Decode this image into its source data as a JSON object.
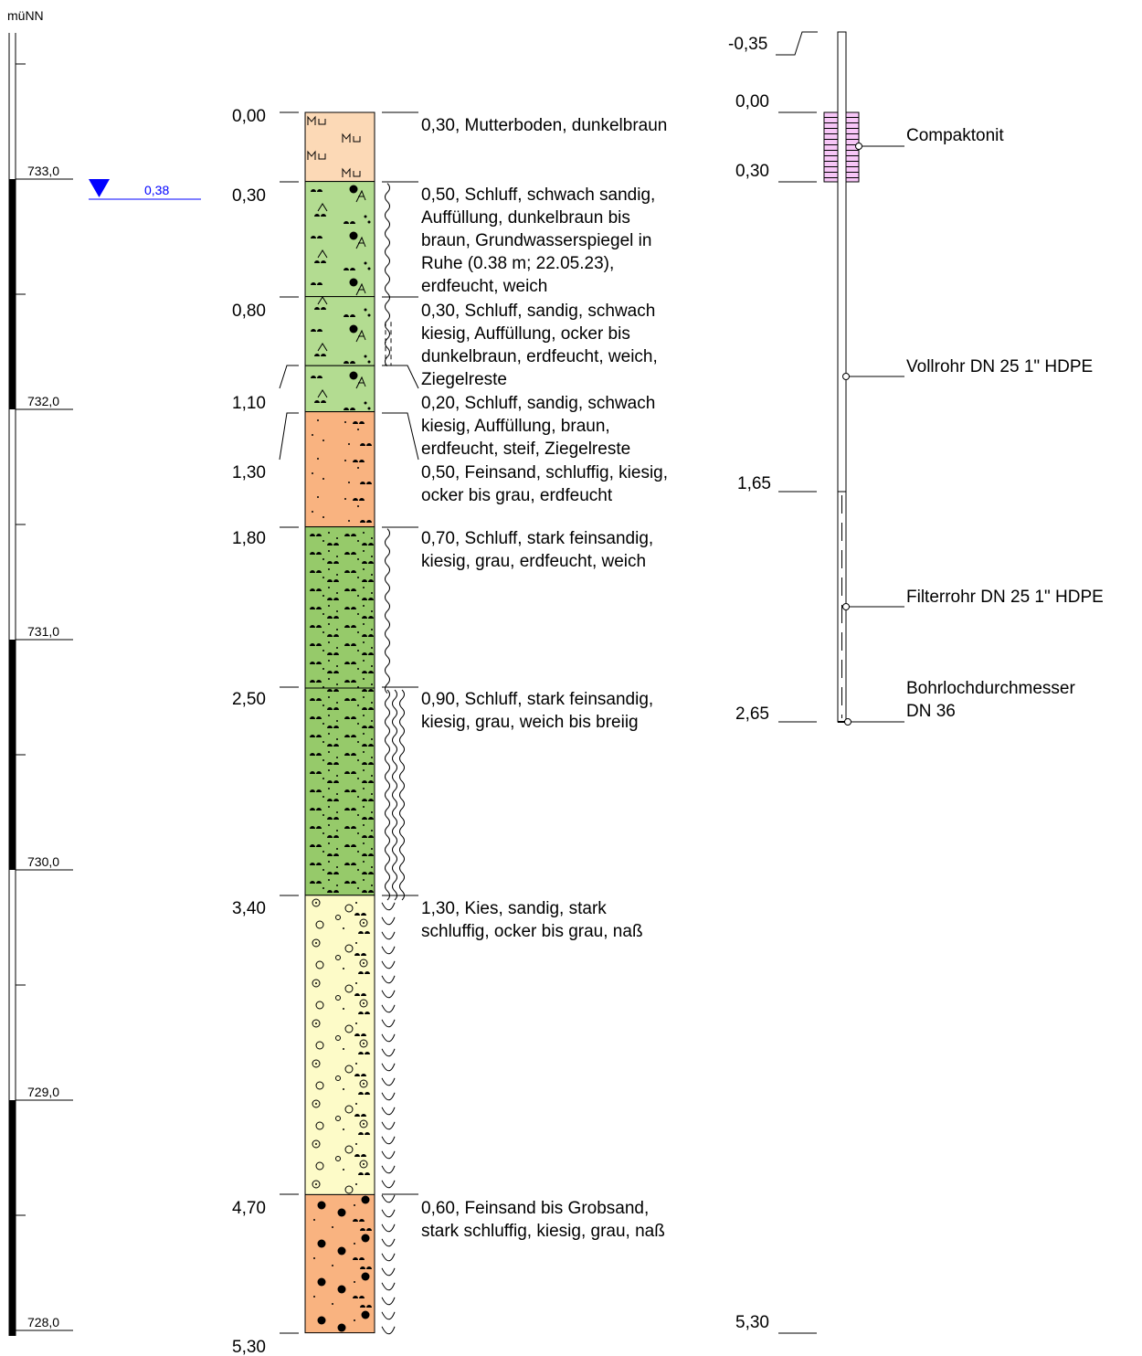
{
  "unit_label": "müNN",
  "elevation_labels": [
    "733,0",
    "732,0",
    "731,0",
    "730,0",
    "729,0",
    "728,0"
  ],
  "groundwater": {
    "depth_label": "0,38",
    "color": "#0000ff"
  },
  "layers": [
    {
      "top": 0.0,
      "bottom": 0.3,
      "top_label": "0,00",
      "color": "#fcd9b6",
      "pattern": "topsoil",
      "description": [
        "0,30, Mutterboden, dunkelbraun"
      ]
    },
    {
      "top": 0.3,
      "bottom": 0.8,
      "top_label": "0,30",
      "color": "#b3dc91",
      "pattern": "fill",
      "description": [
        "0,50, Schluff, schwach sandig,",
        "Auffüllung, dunkelbraun bis",
        "braun, Grundwasserspiegel in",
        "Ruhe (0.38 m; 22.05.23),",
        "erdfeucht, weich"
      ]
    },
    {
      "top": 0.8,
      "bottom": 1.1,
      "top_label": "0,80",
      "color": "#b3dc91",
      "pattern": "fill",
      "description": [
        "0,30, Schluff, sandig, schwach",
        "kiesig, Auffüllung, ocker bis",
        "dunkelbraun, erdfeucht, weich,",
        "Ziegelreste"
      ]
    },
    {
      "top": 1.1,
      "bottom": 1.3,
      "top_label": "1,10",
      "color": "#b3dc91",
      "pattern": "fill",
      "description": [
        "0,20, Schluff, sandig, schwach",
        "kiesig, Auffüllung, braun,",
        "erdfeucht, steif, Ziegelreste"
      ]
    },
    {
      "top": 1.3,
      "bottom": 1.8,
      "top_label": "1,30",
      "color": "#f9b380",
      "pattern": "finesand",
      "description": [
        "0,50, Feinsand, schluffig, kiesig,",
        "ocker bis grau, erdfeucht"
      ]
    },
    {
      "top": 1.8,
      "bottom": 2.5,
      "top_label": "1,80",
      "color": "#96ca6a",
      "pattern": "silt",
      "description": [
        "0,70, Schluff, stark feinsandig,",
        "kiesig, grau, erdfeucht, weich"
      ]
    },
    {
      "top": 2.5,
      "bottom": 3.4,
      "top_label": "2,50",
      "color": "#96ca6a",
      "pattern": "silt",
      "description": [
        "0,90, Schluff, stark feinsandig,",
        "kiesig, grau, weich bis breiig"
      ]
    },
    {
      "top": 3.4,
      "bottom": 4.7,
      "top_label": "3,40",
      "color": "#fdfbc8",
      "pattern": "gravel",
      "description": [
        "1,30, Kies, sandig, stark",
        "schluffig, ocker bis grau, naß"
      ]
    },
    {
      "top": 4.7,
      "bottom": 5.3,
      "top_label": "4,70",
      "color": "#f9b380",
      "pattern": "coarsesand",
      "description": [
        "0,60, Feinsand bis Grobsand,",
        "stark schluffig, kiesig, grau, naß"
      ]
    }
  ],
  "final_depth_label": "5,30",
  "well": {
    "top_label": "-0,35",
    "seal": {
      "top_label": "0,00",
      "bottom_label": "0,30",
      "label": "Compaktonit",
      "color": "#f7c6f7"
    },
    "casing": {
      "bottom_label": "1,65",
      "label": "Vollrohr DN 25 1\" HDPE"
    },
    "screen": {
      "label": "Filterrohr DN 25 1\" HDPE"
    },
    "borehole": {
      "label_line1": "Bohrlochdurchmesser",
      "label_line2": "DN 36",
      "bottom_label": "2,65"
    },
    "final_label": "5,30"
  }
}
